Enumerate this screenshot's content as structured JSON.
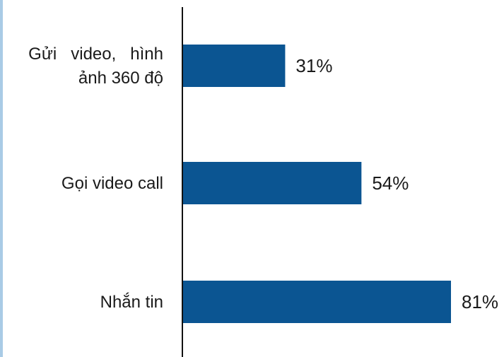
{
  "chart_data": {
    "type": "bar",
    "orientation": "horizontal",
    "categories": [
      "Gửi video, hình ảnh 360 độ",
      "Gọi video call",
      "Nhắn tin"
    ],
    "category_lines": [
      [
        "Gửi   video,   hình",
        "ảnh 360 độ"
      ],
      [
        "Gọi video call"
      ],
      [
        "Nhắn tin"
      ]
    ],
    "values": [
      31,
      54,
      81
    ],
    "value_labels": [
      "31%",
      "54%",
      "81%"
    ],
    "xlim": [
      0,
      100
    ],
    "grid": false,
    "legend": "none",
    "bar_color": "#0b5592",
    "border_color": "#a9cbe6"
  }
}
